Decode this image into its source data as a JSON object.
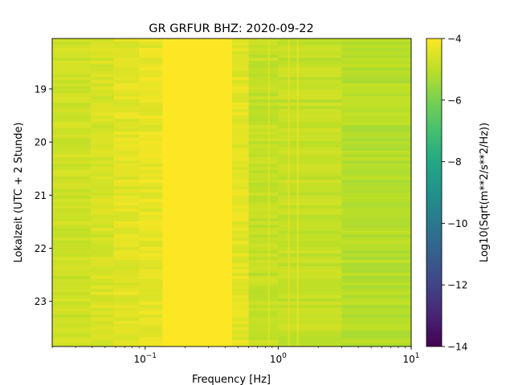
{
  "chart_data": {
    "type": "heatmap",
    "title": "GR GRFUR  BHZ: 2020-09-22",
    "xlabel": "Frequency [Hz]",
    "ylabel": "Lokalzeit (UTC + 2 Stunde)",
    "xscale": "log",
    "xlim": [
      0.02,
      10
    ],
    "ylim": [
      23.85,
      18.05
    ],
    "x_ticks": [
      {
        "value": 0.1,
        "base": "10",
        "exp": "−1"
      },
      {
        "value": 1,
        "base": "10",
        "exp": "0"
      },
      {
        "value": 10,
        "base": "10",
        "exp": "1"
      }
    ],
    "y_ticks": [
      {
        "value": 19,
        "label": "19"
      },
      {
        "value": 20,
        "label": "20"
      },
      {
        "value": 21,
        "label": "21"
      },
      {
        "value": 22,
        "label": "22"
      },
      {
        "value": 23,
        "label": "23"
      }
    ],
    "colorbar": {
      "label": "Log10(Sqrt(m**2/s**2/Hz))",
      "range": [
        -14,
        -4
      ],
      "colormap": "viridis",
      "ticks": [
        {
          "value": -4,
          "label": "−4"
        },
        {
          "value": -6,
          "label": "−6"
        },
        {
          "value": -8,
          "label": "−8"
        },
        {
          "value": -10,
          "label": "−10"
        },
        {
          "value": -12,
          "label": "−12"
        },
        {
          "value": -14,
          "label": "−14"
        }
      ]
    },
    "bands": [
      {
        "f_min": 0.02,
        "f_max": 0.039,
        "level": -4.75
      },
      {
        "f_min": 0.039,
        "f_max": 0.058,
        "level": -4.6
      },
      {
        "f_min": 0.058,
        "f_max": 0.09,
        "level": -4.45
      },
      {
        "f_min": 0.09,
        "f_max": 0.135,
        "level": -4.35
      },
      {
        "f_min": 0.135,
        "f_max": 0.45,
        "level": -4.0
      },
      {
        "f_min": 0.45,
        "f_max": 0.6,
        "level": -4.4
      },
      {
        "f_min": 0.6,
        "f_max": 1.0,
        "level": -4.9
      },
      {
        "f_min": 1.0,
        "f_max": 3.0,
        "level": -4.9
      },
      {
        "f_min": 3.0,
        "f_max": 10,
        "level": -5.1
      }
    ],
    "vertical_lines": [
      {
        "freq": 0.85,
        "level": -4.5
      },
      {
        "freq": 1.2,
        "level": -4.5
      },
      {
        "freq": 1.4,
        "level": -4.4
      }
    ]
  }
}
